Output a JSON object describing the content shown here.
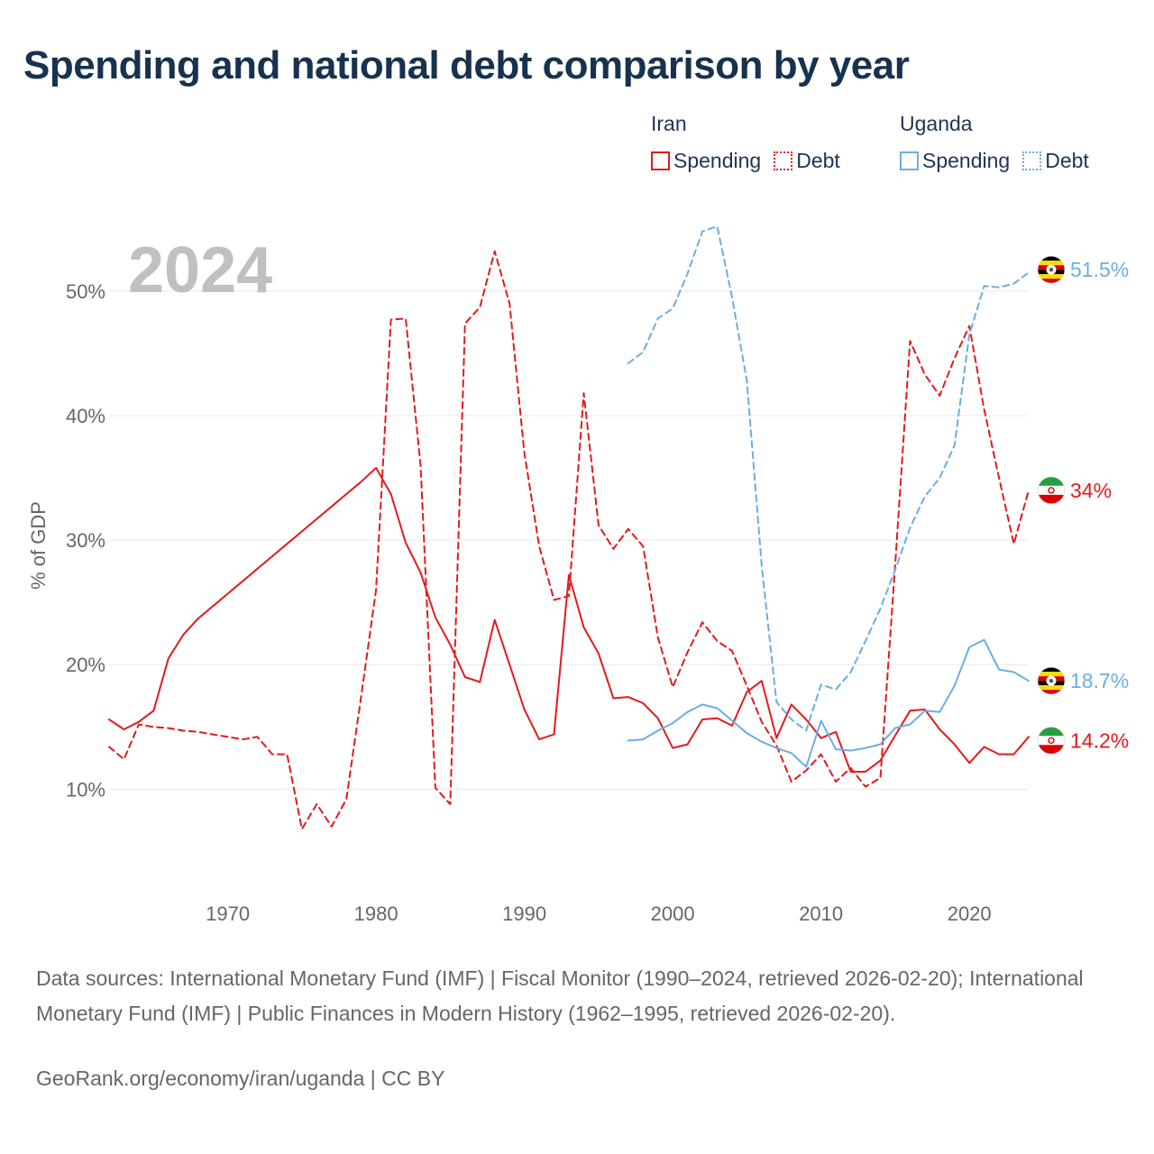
{
  "header": {
    "title": "Spending and national debt comparison by year"
  },
  "legend": {
    "groups": [
      {
        "country": "Iran",
        "spending_label": "Spending",
        "debt_label": "Debt",
        "color": "#e41a1c"
      },
      {
        "country": "Uganda",
        "spending_label": "Spending",
        "debt_label": "Debt",
        "color": "#6aaee3"
      }
    ]
  },
  "chart_data": {
    "type": "line",
    "title": "Spending and national debt comparison by year",
    "year_label": "2024",
    "xlabel": "",
    "ylabel": "% of GDP",
    "xlim": [
      1962,
      2024
    ],
    "ylim": [
      3,
      56
    ],
    "x_ticks": [
      1970,
      1980,
      1990,
      2000,
      2010,
      2020
    ],
    "y_ticks": [
      10,
      20,
      30,
      40,
      50
    ],
    "y_tick_labels": [
      "10%",
      "20%",
      "30%",
      "40%",
      "50%"
    ],
    "grid": true,
    "series": [
      {
        "name": "Iran Spending",
        "country": "Iran",
        "metric": "Spending",
        "color": "#e41a1c",
        "dashed": false,
        "end_label": "14.2%",
        "flag": "iran",
        "x": [
          1962,
          1963,
          1964,
          1965,
          1966,
          1967,
          1968,
          1969,
          1970,
          1971,
          1972,
          1973,
          1974,
          1975,
          1976,
          1977,
          1978,
          1979,
          1980,
          1981,
          1982,
          1983,
          1984,
          1985,
          1986,
          1987,
          1988,
          1989,
          1990,
          1991,
          1992,
          1993,
          1994,
          1995,
          1996,
          1997,
          1998,
          1999,
          2000,
          2001,
          2002,
          2003,
          2004,
          2005,
          2006,
          2007,
          2008,
          2009,
          2010,
          2011,
          2012,
          2013,
          2014,
          2015,
          2016,
          2017,
          2018,
          2019,
          2020,
          2021,
          2022,
          2023,
          2024
        ],
        "y": [
          15.6,
          14.8,
          15.4,
          16.3,
          20.5,
          22.4,
          23.7,
          24.7,
          25.7,
          26.7,
          27.7,
          28.7,
          29.7,
          30.7,
          31.7,
          32.7,
          33.7,
          34.7,
          35.8,
          33.7,
          29.8,
          27.4,
          23.8,
          21.6,
          19.0,
          18.6,
          23.6,
          20.0,
          16.4,
          14.0,
          14.4,
          27.2,
          23.0,
          20.9,
          17.3,
          17.4,
          16.9,
          15.7,
          13.3,
          13.6,
          15.6,
          15.7,
          15.1,
          17.8,
          18.7,
          14.1,
          16.8,
          15.6,
          14.1,
          14.6,
          11.4,
          11.4,
          12.3,
          14.3,
          16.3,
          16.4,
          14.8,
          13.6,
          12.1,
          13.4,
          12.8,
          12.8,
          14.2
        ]
      },
      {
        "name": "Iran Debt",
        "country": "Iran",
        "metric": "Debt",
        "color": "#e41a1c",
        "dashed": true,
        "end_label": "34%",
        "flag": "iran",
        "x": [
          1962,
          1963,
          1964,
          1965,
          1966,
          1967,
          1968,
          1969,
          1970,
          1971,
          1972,
          1973,
          1974,
          1975,
          1976,
          1977,
          1978,
          1979,
          1980,
          1981,
          1982,
          1983,
          1984,
          1985,
          1986,
          1987,
          1988,
          1989,
          1990,
          1991,
          1992,
          1993,
          1994,
          1995,
          1996,
          1997,
          1998,
          1999,
          2000,
          2001,
          2002,
          2003,
          2004,
          2005,
          2006,
          2007,
          2008,
          2009,
          2010,
          2011,
          2012,
          2013,
          2014,
          2015,
          2016,
          2017,
          2018,
          2019,
          2020,
          2021,
          2022,
          2023,
          2024
        ],
        "y": [
          13.4,
          12.4,
          15.2,
          15.0,
          14.9,
          14.7,
          14.6,
          14.4,
          14.2,
          14.0,
          14.2,
          12.8,
          12.8,
          6.8,
          8.8,
          7.0,
          9.2,
          17.5,
          26.0,
          47.7,
          47.8,
          36.0,
          10.1,
          8.8,
          47.4,
          48.7,
          53.2,
          49.0,
          37.0,
          29.5,
          25.2,
          25.5,
          41.8,
          31.2,
          29.3,
          30.9,
          29.5,
          22.2,
          18.2,
          21.0,
          23.4,
          21.9,
          21.1,
          18.3,
          15.4,
          13.5,
          10.6,
          11.5,
          12.8,
          10.6,
          11.7,
          10.2,
          10.9,
          28.0,
          46.0,
          43.3,
          41.6,
          44.6,
          47.2,
          40.5,
          35.0,
          29.7,
          34.0
        ]
      },
      {
        "name": "Uganda Spending",
        "country": "Uganda",
        "metric": "Spending",
        "color": "#6aaee3",
        "dashed": false,
        "end_label": "18.7%",
        "flag": "uganda",
        "x": [
          1997,
          1998,
          1999,
          2000,
          2001,
          2002,
          2003,
          2004,
          2005,
          2006,
          2007,
          2008,
          2009,
          2010,
          2011,
          2012,
          2013,
          2014,
          2015,
          2016,
          2017,
          2018,
          2019,
          2020,
          2021,
          2022,
          2023,
          2024
        ],
        "y": [
          13.9,
          14.0,
          14.7,
          15.3,
          16.2,
          16.8,
          16.5,
          15.5,
          14.5,
          13.8,
          13.3,
          12.9,
          11.8,
          15.5,
          13.2,
          13.1,
          13.3,
          13.6,
          14.9,
          15.2,
          16.3,
          16.2,
          18.3,
          21.4,
          22.0,
          19.6,
          19.4,
          18.7
        ]
      },
      {
        "name": "Uganda Debt",
        "country": "Uganda",
        "metric": "Debt",
        "color": "#6aaee3",
        "dashed": true,
        "end_label": "51.5%",
        "flag": "uganda",
        "x": [
          1997,
          1998,
          1999,
          2000,
          2001,
          2002,
          2003,
          2004,
          2005,
          2006,
          2007,
          2008,
          2009,
          2010,
          2011,
          2012,
          2013,
          2014,
          2015,
          2016,
          2017,
          2018,
          2019,
          2020,
          2021,
          2022,
          2023,
          2024
        ],
        "y": [
          44.2,
          45.1,
          47.8,
          48.6,
          51.4,
          54.8,
          55.2,
          49.5,
          42.8,
          27.9,
          17.0,
          15.6,
          14.7,
          18.4,
          18.0,
          19.4,
          21.9,
          24.5,
          27.6,
          31.0,
          33.5,
          35.0,
          37.6,
          46.5,
          50.4,
          50.3,
          50.6,
          51.5
        ]
      }
    ]
  },
  "footer": {
    "sources": "Data sources: International Monetary Fund (IMF) | Fiscal Monitor (1990–2024, retrieved 2026-02-20); International Monetary Fund (IMF) | Public Finances in Modern History (1962–1995, retrieved 2026-02-20).",
    "credit": "GeoRank.org/economy/iran/uganda | CC BY"
  }
}
